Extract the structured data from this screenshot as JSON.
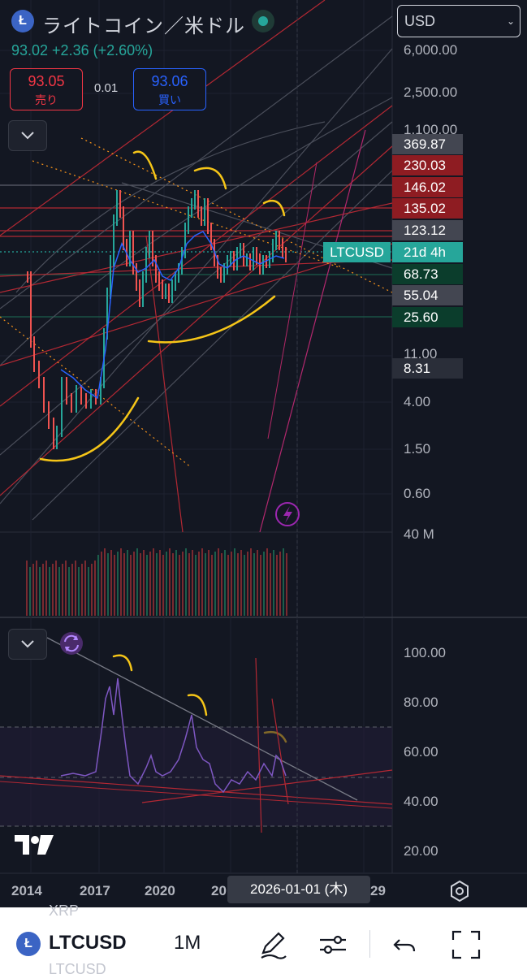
{
  "header": {
    "logo_letter": "Ł",
    "title": "ライトコイン／米ドル",
    "price_line": "93.02 +2.36 (+2.60%)",
    "sell": {
      "price": "93.05",
      "label": "売り"
    },
    "spread": "0.01",
    "buy": {
      "price": "93.06",
      "label": "買い"
    }
  },
  "currency": {
    "selected": "USD"
  },
  "price_axis": {
    "labels": [
      "6,000.00",
      "2,500.00",
      "1,100.00",
      "11.00",
      "4.00",
      "1.50",
      "0.60",
      "40 M"
    ],
    "tags": [
      {
        "value": "369.87",
        "color": "#434651"
      },
      {
        "value": "230.03",
        "color": "#8e1c22"
      },
      {
        "value": "146.02",
        "color": "#8e1c22"
      },
      {
        "value": "135.02",
        "color": "#8e1c22"
      },
      {
        "value": "123.12",
        "color": "#434651"
      },
      {
        "value": "68.73",
        "color": "#0b3d2c"
      },
      {
        "value": "55.04",
        "color": "#434651"
      },
      {
        "value": "25.60",
        "color": "#0b3d2c"
      },
      {
        "value": "8.31",
        "color": "#2a2e39"
      }
    ],
    "symbol_tag": "LTCUSD",
    "countdown": "21d 4h"
  },
  "rsi_axis": {
    "labels": [
      "100.00",
      "80.00",
      "60.00",
      "40.00",
      "20.00"
    ]
  },
  "time_axis": {
    "labels": [
      "2014",
      "2017",
      "2020",
      "20",
      "29"
    ],
    "tooltip": "2026-01-01 (木)"
  },
  "icons": {
    "collapse": "chevron-down-icon",
    "refresh": "refresh-icon",
    "lightning": "lightning-icon",
    "settings": "settings-icon",
    "draw": "pen-icon",
    "indicators": "sliders-icon",
    "undo": "undo-icon",
    "fullscreen": "fullscreen-icon"
  },
  "bottom_bar": {
    "ghost_top": "XRP",
    "symbol": "LTCUSD",
    "interval": "1M",
    "ghost_bottom": "LTCUSD"
  }
}
